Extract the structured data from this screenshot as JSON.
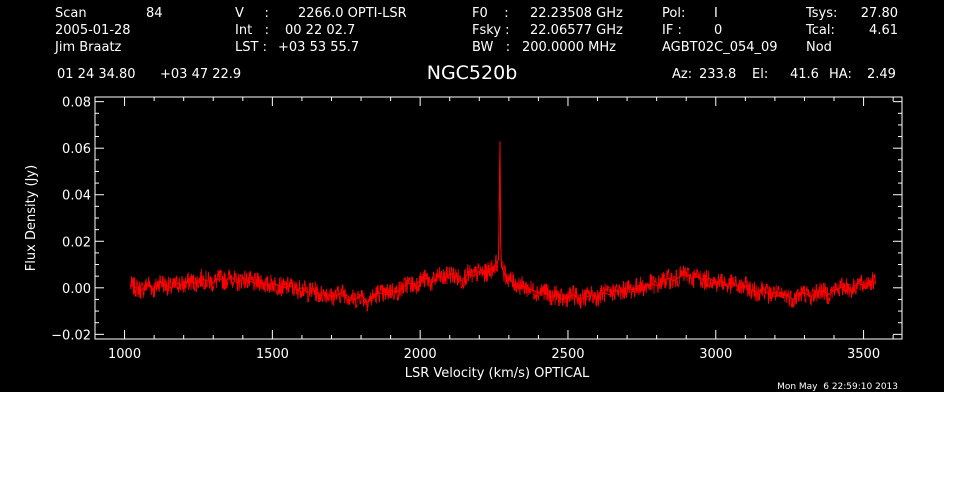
{
  "header": {
    "row1": {
      "scan_label": "Scan",
      "scan_value": "84",
      "v_label": "V     :",
      "v_value": "2266.0 OPTI-LSR",
      "f0_label": "F0    :",
      "f0_value": "22.23508 GHz",
      "pol_label": "Pol:",
      "pol_value": "I",
      "tsys_label": "Tsys:",
      "tsys_value": "27.80"
    },
    "row2": {
      "date": "2005-01-28",
      "int_label": "Int   :",
      "int_value": "00 22 02.7",
      "fsky_label": "Fsky :",
      "fsky_value": "22.06577 GHz",
      "if_label": "IF :",
      "if_value": "0",
      "tcal_label": "Tcal:",
      "tcal_value": "4.61"
    },
    "row3": {
      "observer": "Jim Braatz",
      "lst_label": "LST :",
      "lst_value": "+03 53 55.7",
      "bw_label": "BW   :",
      "bw_value": "200.0000 MHz",
      "project": "AGBT02C_054_09",
      "procedure": "Nod"
    },
    "row4": {
      "ra": "01 24 34.80",
      "dec": "+03 47 22.9",
      "source": "NGC520b",
      "az_label": "Az:",
      "az_value": "233.8",
      "el_label": "El:",
      "el_value": "41.6",
      "ha_label": "HA:",
      "ha_value": "2.49"
    }
  },
  "footer": {
    "timestamp": "Mon May  6 22:59:10 2013"
  },
  "chart_data": {
    "type": "line",
    "title": "",
    "xlabel": "LSR Velocity (km/s) OPTICAL",
    "ylabel": "Flux Density (Jy)",
    "xlim": [
      900,
      3630
    ],
    "ylim": [
      -0.022,
      0.082
    ],
    "xticks": [
      1000,
      1500,
      2000,
      2500,
      3000,
      3500
    ],
    "xtick_labels": [
      "1000",
      "1500",
      "2000",
      "2500",
      "3000",
      "3500"
    ],
    "yticks": [
      -0.02,
      0.0,
      0.02,
      0.04,
      0.06,
      0.08
    ],
    "ytick_labels": [
      "−0.02",
      "0.00",
      "0.02",
      "0.04",
      "0.06",
      "0.08"
    ],
    "grid": false,
    "series": [
      {
        "color": "#ff0000",
        "x": [
          1020,
          1040,
          1060,
          1080,
          1100,
          1120,
          1140,
          1160,
          1180,
          1200,
          1220,
          1240,
          1260,
          1280,
          1300,
          1320,
          1340,
          1360,
          1380,
          1400,
          1420,
          1440,
          1460,
          1480,
          1500,
          1520,
          1540,
          1560,
          1580,
          1600,
          1620,
          1640,
          1660,
          1680,
          1700,
          1720,
          1740,
          1760,
          1780,
          1800,
          1820,
          1840,
          1860,
          1880,
          1900,
          1920,
          1940,
          1960,
          1980,
          2000,
          2020,
          2040,
          2060,
          2080,
          2100,
          2120,
          2140,
          2160,
          2180,
          2200,
          2220,
          2240,
          2255,
          2265,
          2268,
          2270,
          2272,
          2275,
          2285,
          2300,
          2320,
          2340,
          2360,
          2380,
          2400,
          2420,
          2440,
          2460,
          2480,
          2500,
          2520,
          2540,
          2560,
          2580,
          2600,
          2620,
          2640,
          2660,
          2680,
          2700,
          2720,
          2740,
          2760,
          2780,
          2800,
          2820,
          2840,
          2860,
          2880,
          2900,
          2920,
          2940,
          2960,
          2980,
          3000,
          3020,
          3040,
          3060,
          3080,
          3100,
          3120,
          3140,
          3160,
          3180,
          3200,
          3220,
          3240,
          3260,
          3280,
          3300,
          3320,
          3340,
          3360,
          3380,
          3400,
          3420,
          3440,
          3460,
          3480,
          3500,
          3520,
          3540
        ],
        "y": [
          0.001,
          0.0,
          -0.001,
          0.002,
          -0.001,
          0.003,
          0.001,
          0.0,
          0.002,
          0.001,
          0.003,
          0.002,
          0.004,
          0.003,
          0.002,
          0.004,
          0.003,
          0.005,
          0.002,
          0.004,
          0.003,
          0.002,
          0.003,
          0.001,
          0.002,
          0.001,
          0.0,
          0.001,
          -0.001,
          0.0,
          -0.002,
          -0.001,
          -0.003,
          -0.002,
          -0.004,
          -0.003,
          -0.002,
          -0.004,
          -0.005,
          -0.003,
          -0.006,
          -0.004,
          -0.002,
          -0.003,
          -0.001,
          -0.002,
          0.0,
          0.002,
          0.001,
          0.003,
          0.004,
          0.002,
          0.005,
          0.004,
          0.006,
          0.005,
          0.003,
          0.006,
          0.005,
          0.007,
          0.006,
          0.008,
          0.01,
          0.012,
          0.04,
          0.063,
          0.02,
          0.009,
          0.006,
          0.004,
          0.002,
          0.001,
          0.0,
          -0.001,
          -0.002,
          -0.001,
          -0.004,
          -0.003,
          -0.005,
          -0.004,
          -0.003,
          -0.005,
          -0.004,
          -0.003,
          -0.004,
          -0.002,
          -0.003,
          -0.001,
          -0.002,
          0.0,
          -0.001,
          0.001,
          0.0,
          0.002,
          0.001,
          0.003,
          0.004,
          0.003,
          0.005,
          0.006,
          0.004,
          0.005,
          0.003,
          0.004,
          0.002,
          0.003,
          0.001,
          0.002,
          0.0,
          0.001,
          -0.001,
          -0.002,
          0.0,
          -0.003,
          -0.002,
          -0.004,
          -0.003,
          -0.005,
          -0.003,
          -0.002,
          -0.004,
          -0.002,
          -0.001,
          -0.003,
          -0.001,
          0.0,
          0.001,
          -0.001,
          0.002,
          0.001,
          0.003,
          0.002
        ]
      }
    ]
  }
}
